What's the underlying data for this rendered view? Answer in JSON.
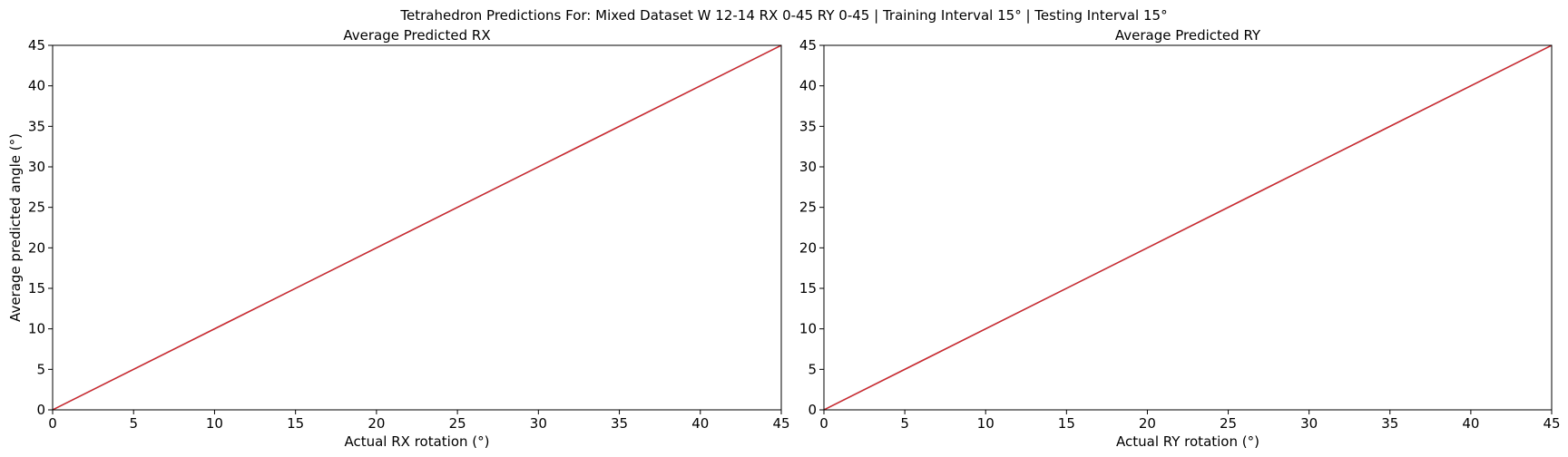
{
  "figure": {
    "suptitle": "Tetrahedron Predictions For: Mixed Dataset W 12-14 RX 0-45 RY 0-45 | Training Interval 15° | Testing Interval 15°"
  },
  "colors": {
    "series_a": "#1f77b4",
    "series_b": "#d62728",
    "axes": "#000000"
  },
  "chart_data": [
    {
      "type": "line",
      "title": "Average Predicted RX",
      "xlabel": "Actual RX rotation (°)",
      "ylabel": "Average predicted angle (°)",
      "xlim": [
        0,
        45
      ],
      "ylim": [
        0,
        45
      ],
      "xticks": [
        "0",
        "5",
        "10",
        "15",
        "20",
        "25",
        "30",
        "35",
        "40",
        "45"
      ],
      "yticks": [
        "0",
        "5",
        "10",
        "15",
        "20",
        "25",
        "30",
        "35",
        "40",
        "45"
      ],
      "grid": false,
      "series": [
        {
          "x": [
            0,
            15,
            30,
            45
          ],
          "y": [
            0,
            15,
            30,
            45
          ],
          "color": "#1f77b4"
        },
        {
          "x": [
            0,
            15,
            30,
            45
          ],
          "y": [
            0,
            15,
            30,
            45
          ],
          "color": "#d62728"
        }
      ]
    },
    {
      "type": "line",
      "title": "Average Predicted RY",
      "xlabel": "Actual RY rotation (°)",
      "ylabel": "",
      "xlim": [
        0,
        45
      ],
      "ylim": [
        0,
        45
      ],
      "xticks": [
        "0",
        "5",
        "10",
        "15",
        "20",
        "25",
        "30",
        "35",
        "40",
        "45"
      ],
      "yticks": [
        "0",
        "5",
        "10",
        "15",
        "20",
        "25",
        "30",
        "35",
        "40",
        "45"
      ],
      "grid": false,
      "series": [
        {
          "x": [
            0,
            15,
            30,
            45
          ],
          "y": [
            0,
            15,
            30,
            45
          ],
          "color": "#1f77b4"
        },
        {
          "x": [
            0,
            15,
            30,
            45
          ],
          "y": [
            0,
            15,
            30,
            45
          ],
          "color": "#d62728"
        }
      ]
    }
  ]
}
